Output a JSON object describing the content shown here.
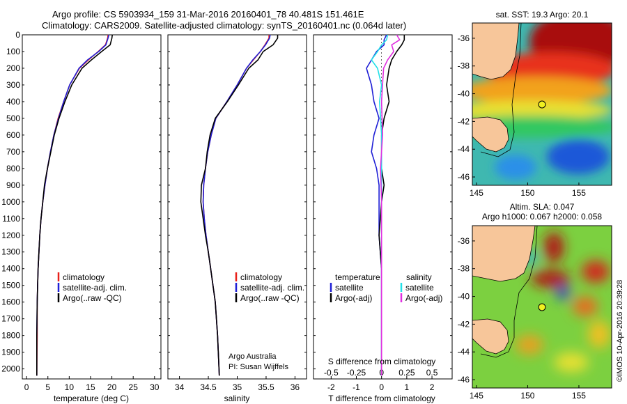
{
  "header": {
    "line1": "Argo profile: CS 5903934_159 31-Mar-2016 20160401_78 40.481S 151.461E",
    "line2": "Climatology: CARS2009. Satellite-adjusted climatology: synTS_20160401.nc (0.064d later)"
  },
  "colors": {
    "climatology": "#e8201a",
    "satellite": "#1f1fd6",
    "argo": "#000000",
    "cyan": "#22e0e8",
    "magenta": "#e030e0"
  },
  "chart_data": [
    {
      "id": "temperature",
      "type": "line",
      "xlabel": "temperature (deg C)",
      "ylabel": "",
      "xlim": [
        -1,
        31.5
      ],
      "ylim": [
        2060,
        0
      ],
      "xticks": [
        0,
        5,
        10,
        15,
        20,
        25,
        30
      ],
      "yticks": [
        0,
        100,
        200,
        300,
        400,
        500,
        600,
        700,
        800,
        900,
        1000,
        1100,
        1200,
        1300,
        1400,
        1500,
        1600,
        1700,
        1800,
        1900,
        2000
      ],
      "legend": {
        "position": "center-left",
        "entries": [
          "climatology",
          "satellite-adj. clim.",
          "Argo(..raw -QC)"
        ]
      },
      "series": [
        {
          "name": "climatology",
          "color": "#e8201a",
          "x": [
            19.1,
            19.0,
            18.5,
            16.8,
            14.5,
            12.4,
            10.1,
            8.7,
            7.4,
            6.4,
            5.6,
            4.9,
            4.3,
            3.8,
            3.4,
            3.1,
            2.9,
            2.7,
            2.6,
            2.5,
            2.5,
            2.4
          ],
          "y": [
            0,
            20,
            60,
            100,
            150,
            200,
            300,
            400,
            500,
            600,
            700,
            800,
            900,
            1000,
            1100,
            1200,
            1300,
            1400,
            1500,
            1600,
            1800,
            2040
          ]
        },
        {
          "name": "satellite-adj. clim.",
          "color": "#1f1fd6",
          "x": [
            19.3,
            19.1,
            18.6,
            16.9,
            14.3,
            12.3,
            10.1,
            8.7,
            7.5,
            6.4,
            5.6,
            4.9,
            4.3,
            3.8,
            3.4,
            3.1,
            2.9,
            2.7,
            2.6,
            2.5,
            2.4,
            2.4
          ],
          "y": [
            0,
            20,
            60,
            100,
            150,
            200,
            300,
            400,
            500,
            600,
            700,
            800,
            900,
            1000,
            1100,
            1200,
            1300,
            1400,
            1500,
            1600,
            1800,
            2040
          ]
        },
        {
          "name": "Argo(..raw -QC)",
          "color": "#000000",
          "x": [
            20.1,
            20.0,
            19.6,
            17.6,
            15.2,
            13.0,
            10.6,
            9.0,
            7.6,
            6.5,
            5.7,
            4.9,
            4.2,
            3.8,
            3.4,
            3.1,
            2.9,
            2.7,
            2.6,
            2.5,
            2.4,
            2.4
          ],
          "y": [
            0,
            20,
            60,
            100,
            150,
            200,
            300,
            400,
            500,
            600,
            700,
            800,
            900,
            1000,
            1100,
            1200,
            1300,
            1400,
            1500,
            1600,
            1800,
            2040
          ]
        }
      ]
    },
    {
      "id": "salinity",
      "type": "line",
      "xlabel": "salinity",
      "ylabel": "",
      "xlim": [
        33.8,
        36.2
      ],
      "ylim": [
        2060,
        0
      ],
      "xticks": [
        34,
        34.5,
        35,
        35.5,
        36
      ],
      "legend": {
        "position": "center-right",
        "entries": [
          "climatology",
          "satellite-adj. clim.",
          "Argo(..raw -QC)"
        ]
      },
      "annotation": {
        "line1": "Argo Australia",
        "line2": "PI: Susan Wijffels"
      },
      "series": [
        {
          "name": "climatology",
          "color": "#e8201a",
          "x": [
            35.55,
            35.55,
            35.48,
            35.4,
            35.28,
            35.16,
            35.0,
            34.82,
            34.63,
            34.55,
            34.49,
            34.45,
            34.42,
            34.41,
            34.43,
            34.46,
            34.5,
            34.54,
            34.58,
            34.62,
            34.66,
            34.69
          ],
          "y": [
            0,
            20,
            60,
            100,
            150,
            200,
            300,
            400,
            500,
            600,
            700,
            800,
            900,
            1000,
            1100,
            1200,
            1300,
            1400,
            1500,
            1600,
            1800,
            2040
          ]
        },
        {
          "name": "satellite-adj. clim.",
          "color": "#1f1fd6",
          "x": [
            35.57,
            35.56,
            35.49,
            35.4,
            35.27,
            35.16,
            35.0,
            34.82,
            34.63,
            34.55,
            34.49,
            34.45,
            34.42,
            34.41,
            34.43,
            34.46,
            34.5,
            34.54,
            34.58,
            34.62,
            34.66,
            34.69
          ],
          "y": [
            0,
            20,
            60,
            100,
            150,
            200,
            300,
            400,
            500,
            600,
            700,
            800,
            900,
            1000,
            1100,
            1200,
            1300,
            1400,
            1500,
            1600,
            1800,
            2040
          ]
        },
        {
          "name": "Argo(..raw -QC)",
          "color": "#000000",
          "x": [
            35.7,
            35.7,
            35.62,
            35.45,
            35.36,
            35.2,
            35.02,
            34.83,
            34.62,
            34.53,
            34.48,
            34.45,
            34.38,
            34.37,
            34.41,
            34.45,
            34.5,
            34.54,
            34.58,
            34.62,
            34.66,
            34.69
          ],
          "y": [
            0,
            20,
            60,
            100,
            150,
            200,
            300,
            400,
            500,
            600,
            700,
            800,
            900,
            1000,
            1100,
            1200,
            1300,
            1400,
            1500,
            1600,
            1800,
            2040
          ]
        }
      ]
    },
    {
      "id": "difference",
      "type": "line",
      "xlabel": "T difference from climatology",
      "xlabel2": "S difference from climatology",
      "xlim": [
        -2.7,
        2.8
      ],
      "ylim": [
        2060,
        0
      ],
      "xticks": [
        -2,
        -1,
        0,
        1,
        2
      ],
      "xticks_s": [
        "-0.5",
        "-0.25",
        "0",
        "0.25",
        "0.5"
      ],
      "xticks_s_values": [
        -0.5,
        -0.25,
        0,
        0.25,
        0.5
      ],
      "legend": {
        "position": "center",
        "col1_title": "temperature",
        "col2_title": "salinity",
        "entries": [
          "satellite",
          "Argo(-adj)",
          "satellite",
          "Argo(-adj)"
        ]
      },
      "series": [
        {
          "name": "T satellite",
          "color": "#1f1fd6",
          "x": [
            0.2,
            0.1,
            0.1,
            -0.2,
            -0.4,
            -0.6,
            -0.4,
            -0.3,
            -0.1,
            -0.3,
            -0.4,
            -0.2,
            -0.1,
            -0.1,
            -0.1,
            0.0,
            0.0,
            0.0,
            0.0,
            0.0
          ],
          "y": [
            0,
            30,
            60,
            100,
            150,
            200,
            300,
            400,
            500,
            600,
            700,
            800,
            900,
            1000,
            1200,
            1400,
            1600,
            1800,
            1950,
            2040
          ]
        },
        {
          "name": "T Argo(-adj)",
          "color": "#000000",
          "x": [
            0.9,
            0.9,
            0.8,
            0.6,
            0.4,
            0.3,
            0.2,
            0.3,
            0.1,
            0.0,
            0.0,
            0.0,
            0.1,
            0.0,
            -0.1,
            0.0,
            0.0,
            0.0,
            0.0,
            0.0
          ],
          "y": [
            0,
            30,
            60,
            100,
            150,
            200,
            300,
            400,
            500,
            600,
            700,
            800,
            900,
            1000,
            1200,
            1400,
            1600,
            1800,
            1950,
            2040
          ]
        },
        {
          "name": "S satellite",
          "color": "#22e0e8",
          "x": [
            0.06,
            0.05,
            0.0,
            -0.04,
            -0.1,
            -0.04,
            0.0,
            -0.02,
            0.0,
            0.0,
            0.0,
            0.0,
            0.0,
            0.0,
            0.0,
            0.0
          ],
          "y": [
            0,
            30,
            60,
            100,
            150,
            200,
            300,
            400,
            600,
            800,
            1000,
            1200,
            1400,
            1600,
            1800,
            2040
          ]
        },
        {
          "name": "S Argo(-adj)",
          "color": "#e030e0",
          "x": [
            0.15,
            0.18,
            0.1,
            0.12,
            0.06,
            0.02,
            0.01,
            0.0,
            0.01,
            -0.01,
            0.0,
            0.0,
            0.0,
            0.0,
            0.0,
            0.0
          ],
          "y": [
            0,
            30,
            60,
            100,
            150,
            200,
            300,
            400,
            600,
            800,
            1000,
            1200,
            1400,
            1600,
            1800,
            2040
          ]
        }
      ]
    }
  ],
  "maps": [
    {
      "id": "sst-map",
      "title": "sat. SST: 19.3 Argo: 20.1",
      "xticks": [
        "145",
        "150",
        "155"
      ],
      "yticks": [
        "-36",
        "-38",
        "-40",
        "-42",
        "-44",
        "-46"
      ]
    },
    {
      "id": "sla-map",
      "title_line1": "Altim. SLA: 0.047",
      "title_line2": "Argo h1000: 0.067 h2000: 0.058",
      "xticks": [
        "145",
        "150",
        "155"
      ],
      "yticks": [
        "-36",
        "-38",
        "-40",
        "-42",
        "-44",
        "-46"
      ]
    }
  ],
  "credit": "©IMOS 10-Apr-2016 20:39:28"
}
